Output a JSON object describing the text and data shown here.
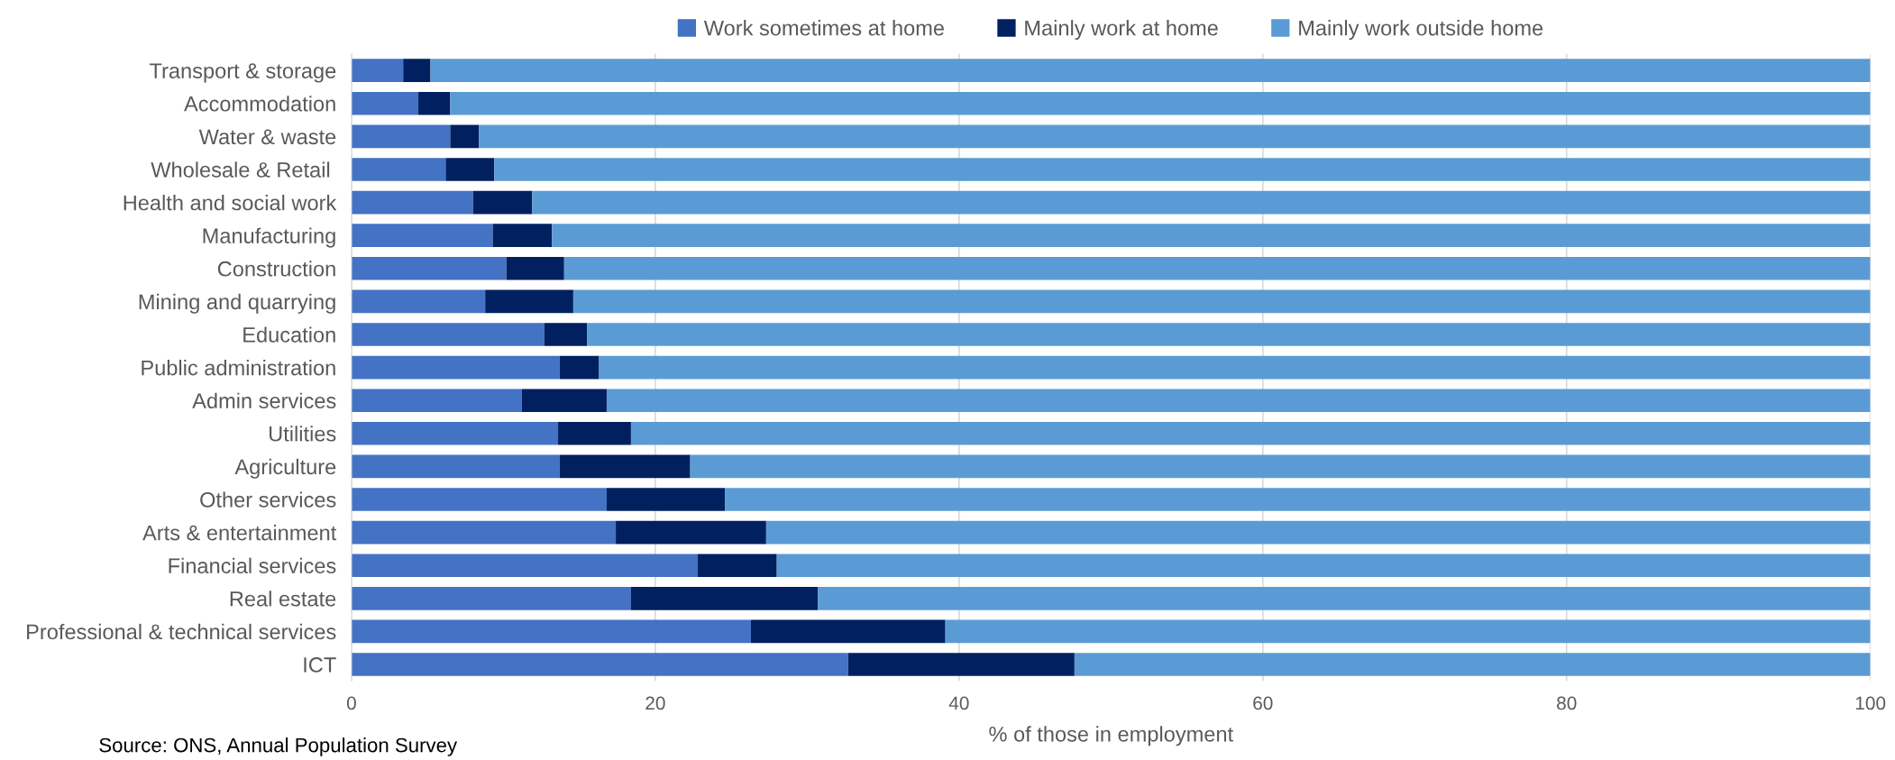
{
  "chart_data": {
    "type": "bar",
    "orientation": "horizontal",
    "stacked": true,
    "xlabel": "% of those in employment",
    "categories": [
      "Transport & storage",
      "Accommodation",
      "Water & waste",
      "Wholesale & Retail ",
      "Health and social work",
      "Manufacturing",
      "Construction",
      "Mining and quarrying",
      "Education",
      "Public administration",
      "Admin services",
      "Utilities",
      "Agriculture",
      "Other services",
      "Arts & entertainment",
      "Financial services",
      "Real estate",
      "Professional & technical services",
      "ICT"
    ],
    "series": [
      {
        "name": "Work sometimes at home",
        "color": "#4472c4",
        "values": [
          3.4,
          4.4,
          6.5,
          6.2,
          8.0,
          9.3,
          10.2,
          8.8,
          12.7,
          13.7,
          11.2,
          13.6,
          13.7,
          16.8,
          17.4,
          22.8,
          18.4,
          26.3,
          32.7
        ]
      },
      {
        "name": "Mainly work at home",
        "color": "#002060",
        "values": [
          1.8,
          2.1,
          1.9,
          3.2,
          3.9,
          3.9,
          3.8,
          5.8,
          2.8,
          2.6,
          5.6,
          4.8,
          8.6,
          7.8,
          9.9,
          5.2,
          12.3,
          12.8,
          14.9
        ]
      },
      {
        "name": "Mainly work outside home",
        "color": "#5b9bd5",
        "values": [
          94.8,
          93.5,
          91.6,
          90.6,
          88.1,
          86.8,
          86.0,
          85.4,
          84.5,
          83.7,
          83.2,
          81.6,
          77.7,
          75.4,
          72.7,
          72.0,
          69.3,
          60.9,
          52.4
        ]
      }
    ],
    "xlim": [
      0,
      100
    ],
    "xticks": [
      0,
      20,
      40,
      60,
      80,
      100
    ],
    "grid": "x",
    "legend": "top",
    "annotations": [
      "Source: ONS, Annual Population Survey"
    ]
  }
}
